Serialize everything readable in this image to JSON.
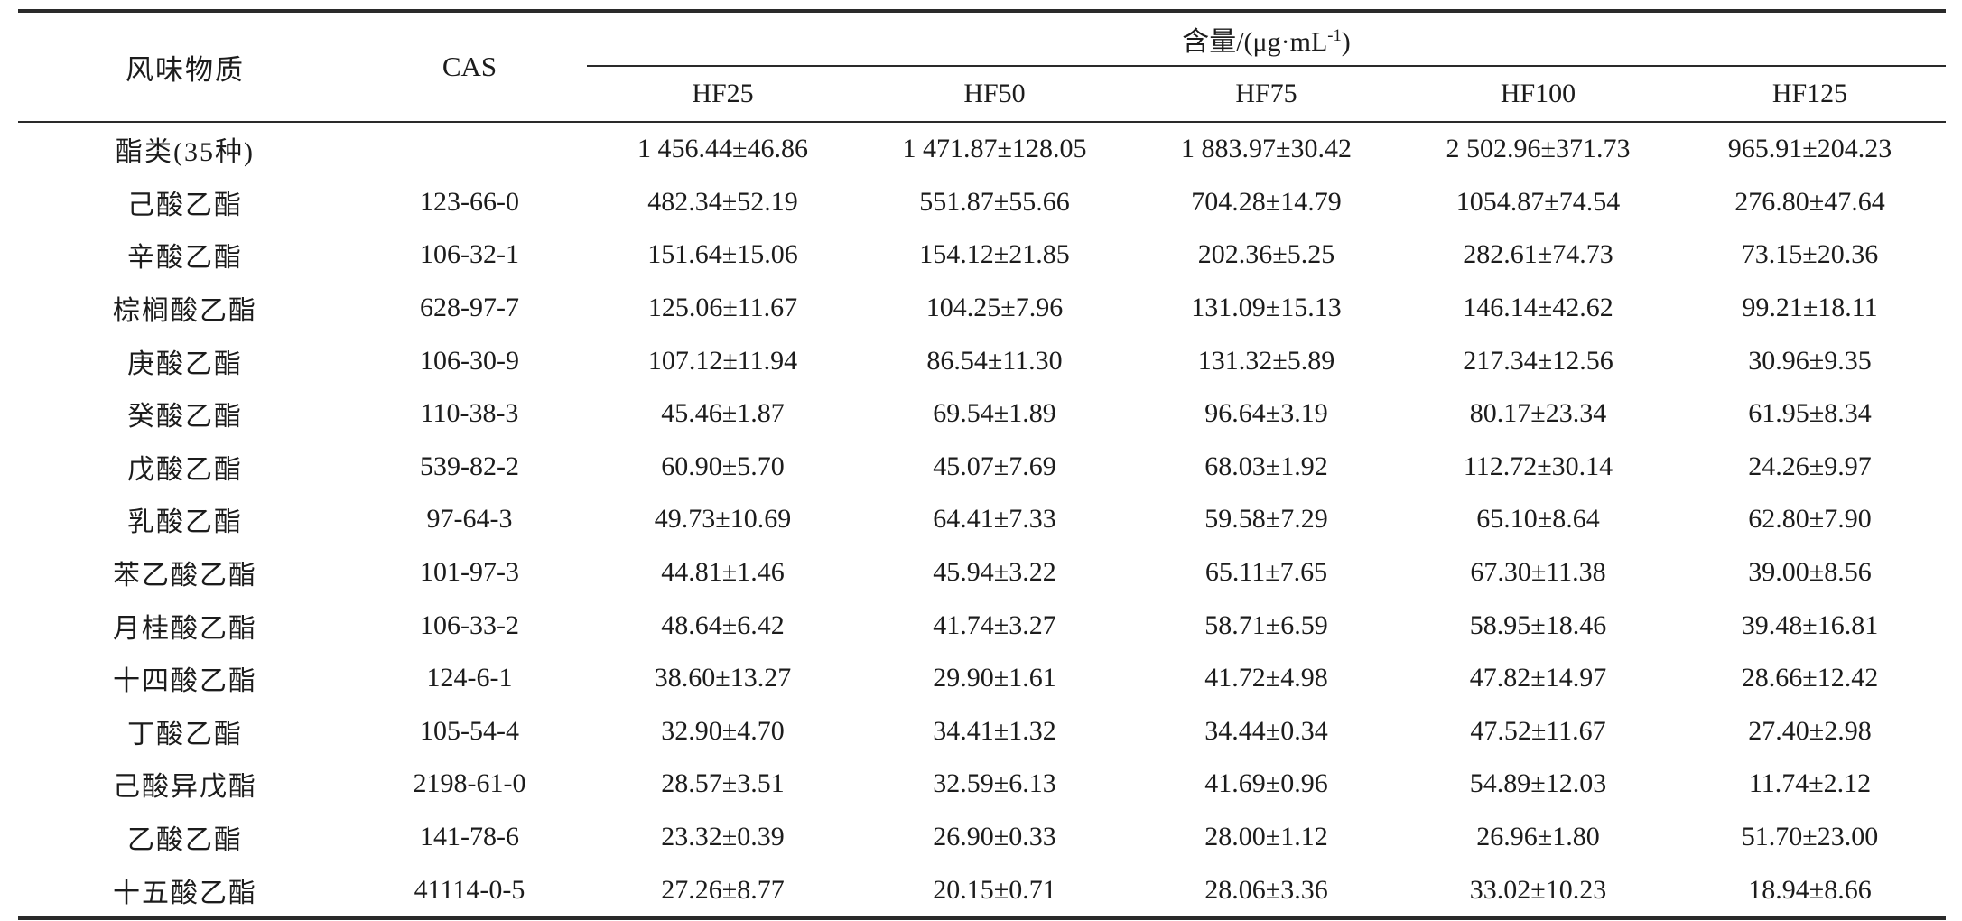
{
  "table": {
    "col_flavor": "风味物质",
    "col_cas": "CAS",
    "content_header": {
      "prefix": "含量/(μg·mL",
      "sup": "-1",
      "suffix": ")"
    },
    "sample_headers": [
      "HF25",
      "HF50",
      "HF75",
      "HF100",
      "HF125"
    ],
    "rows": [
      {
        "name": "酯类(35种)",
        "cas": "",
        "values": [
          "1 456.44±46.86",
          "1 471.87±128.05",
          "1 883.97±30.42",
          "2 502.96±371.73",
          "965.91±204.23"
        ]
      },
      {
        "name": "己酸乙酯",
        "cas": "123-66-0",
        "values": [
          "482.34±52.19",
          "551.87±55.66",
          "704.28±14.79",
          "1054.87±74.54",
          "276.80±47.64"
        ]
      },
      {
        "name": "辛酸乙酯",
        "cas": "106-32-1",
        "values": [
          "151.64±15.06",
          "154.12±21.85",
          "202.36±5.25",
          "282.61±74.73",
          "73.15±20.36"
        ]
      },
      {
        "name": "棕榈酸乙酯",
        "cas": "628-97-7",
        "values": [
          "125.06±11.67",
          "104.25±7.96",
          "131.09±15.13",
          "146.14±42.62",
          "99.21±18.11"
        ]
      },
      {
        "name": "庚酸乙酯",
        "cas": "106-30-9",
        "values": [
          "107.12±11.94",
          "86.54±11.30",
          "131.32±5.89",
          "217.34±12.56",
          "30.96±9.35"
        ]
      },
      {
        "name": "癸酸乙酯",
        "cas": "110-38-3",
        "values": [
          "45.46±1.87",
          "69.54±1.89",
          "96.64±3.19",
          "80.17±23.34",
          "61.95±8.34"
        ]
      },
      {
        "name": "戊酸乙酯",
        "cas": "539-82-2",
        "values": [
          "60.90±5.70",
          "45.07±7.69",
          "68.03±1.92",
          "112.72±30.14",
          "24.26±9.97"
        ]
      },
      {
        "name": "乳酸乙酯",
        "cas": "97-64-3",
        "values": [
          "49.73±10.69",
          "64.41±7.33",
          "59.58±7.29",
          "65.10±8.64",
          "62.80±7.90"
        ]
      },
      {
        "name": "苯乙酸乙酯",
        "cas": "101-97-3",
        "values": [
          "44.81±1.46",
          "45.94±3.22",
          "65.11±7.65",
          "67.30±11.38",
          "39.00±8.56"
        ]
      },
      {
        "name": "月桂酸乙酯",
        "cas": "106-33-2",
        "values": [
          "48.64±6.42",
          "41.74±3.27",
          "58.71±6.59",
          "58.95±18.46",
          "39.48±16.81"
        ]
      },
      {
        "name": "十四酸乙酯",
        "cas": "124-6-1",
        "values": [
          "38.60±13.27",
          "29.90±1.61",
          "41.72±4.98",
          "47.82±14.97",
          "28.66±12.42"
        ]
      },
      {
        "name": "丁酸乙酯",
        "cas": "105-54-4",
        "values": [
          "32.90±4.70",
          "34.41±1.32",
          "34.44±0.34",
          "47.52±11.67",
          "27.40±2.98"
        ]
      },
      {
        "name": "己酸异戊酯",
        "cas": "2198-61-0",
        "values": [
          "28.57±3.51",
          "32.59±6.13",
          "41.69±0.96",
          "54.89±12.03",
          "11.74±2.12"
        ]
      },
      {
        "name": "乙酸乙酯",
        "cas": "141-78-6",
        "values": [
          "23.32±0.39",
          "26.90±0.33",
          "28.00±1.12",
          "26.96±1.80",
          "51.70±23.00"
        ]
      },
      {
        "name": "十五酸乙酯",
        "cas": "41114-0-5",
        "values": [
          "27.26±8.77",
          "20.15±0.71",
          "28.06±3.36",
          "33.02±10.23",
          "18.94±8.66"
        ]
      }
    ]
  }
}
